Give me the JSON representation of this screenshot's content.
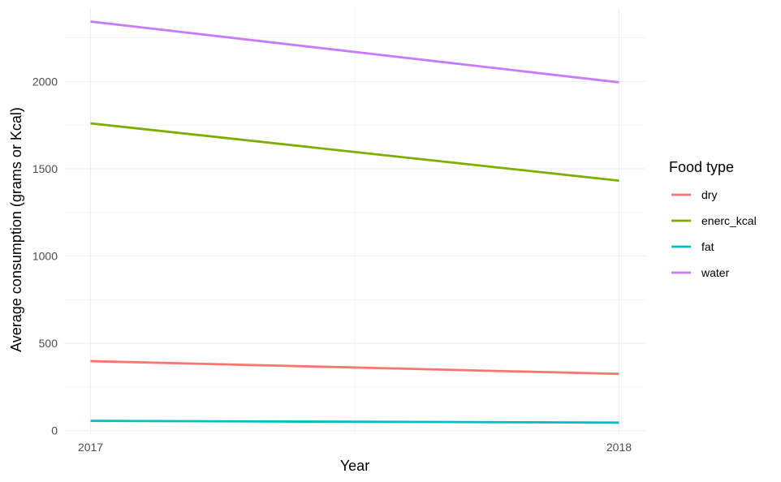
{
  "chart_data": {
    "type": "line",
    "title": "",
    "xlabel": "Year",
    "ylabel": "Average consumption (grams or Kcal)",
    "x": [
      2017,
      2018
    ],
    "x_ticks": [
      "2017",
      "2018"
    ],
    "y_ticks": [
      "0",
      "500",
      "1000",
      "1500",
      "2000"
    ],
    "xlim": [
      2016.95,
      2018.05
    ],
    "ylim": [
      -20,
      2420
    ],
    "grid": true,
    "legend": {
      "title": "Food type",
      "position": "right"
    },
    "series": [
      {
        "name": "dry",
        "color": "#F8766D",
        "values": [
          398,
          325
        ]
      },
      {
        "name": "enerc_kcal",
        "color": "#7CAE00",
        "values": [
          1760,
          1432
        ]
      },
      {
        "name": "fat",
        "color": "#00BFC4",
        "values": [
          56,
          46
        ]
      },
      {
        "name": "water",
        "color": "#C77CFF",
        "values": [
          2343,
          1995
        ]
      }
    ]
  }
}
